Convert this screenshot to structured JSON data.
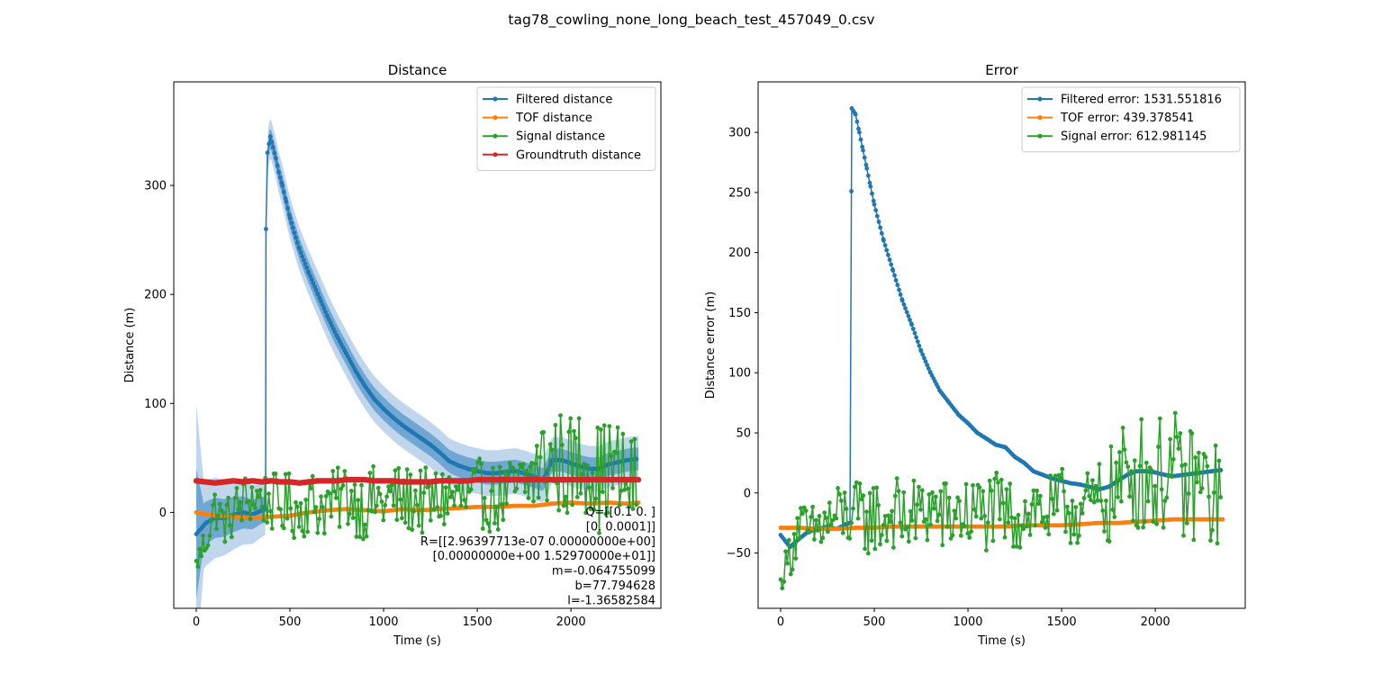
{
  "figure": {
    "suptitle": "tag78_cowling_none_long_beach_test_457049_0.csv"
  },
  "colors": {
    "filtered": "#1f77b4",
    "tof": "#ff7f0e",
    "signal": "#2ca02c",
    "groundtruth": "#d62728",
    "band_outer": "#b8d1ea",
    "band_inner": "#4f92c6"
  },
  "chart_data": [
    {
      "type": "line",
      "title": "Distance",
      "xlabel": "Time (s)",
      "ylabel": "Distance (m)",
      "xlim": [
        -120,
        2480
      ],
      "ylim": [
        -88,
        395
      ],
      "xticks": [
        0,
        500,
        1000,
        1500,
        2000
      ],
      "yticks": [
        0,
        100,
        200,
        300
      ],
      "grid": false,
      "legend_position": "top-right",
      "series": [
        {
          "name": "Filtered distance",
          "color_key": "filtered",
          "style": "dot",
          "x": [
            0,
            50,
            100,
            150,
            200,
            250,
            300,
            350,
            370,
            372,
            380,
            395,
            410,
            425,
            440,
            460,
            480,
            500,
            550,
            600,
            650,
            700,
            750,
            800,
            850,
            900,
            950,
            1000,
            1050,
            1100,
            1150,
            1200,
            1250,
            1300,
            1350,
            1400,
            1450,
            1500,
            1550,
            1600,
            1650,
            1700,
            1750,
            1800,
            1850,
            1880,
            1900,
            1950,
            2000,
            2050,
            2100,
            2150,
            2200,
            2250,
            2300,
            2350
          ],
          "y": [
            -20,
            -10,
            -5,
            -5,
            -2,
            0,
            -2,
            2,
            3,
            260,
            330,
            345,
            335,
            325,
            312,
            300,
            285,
            270,
            242,
            220,
            200,
            180,
            162,
            146,
            130,
            116,
            104,
            95,
            87,
            80,
            74,
            68,
            62,
            55,
            47,
            43,
            40,
            38,
            36,
            36,
            37,
            38,
            36,
            33,
            30,
            40,
            48,
            48,
            45,
            42,
            40,
            40,
            44,
            46,
            48,
            49
          ]
        },
        {
          "name": "TOF distance",
          "color_key": "tof",
          "style": "dot",
          "x": [
            0,
            100,
            200,
            300,
            400,
            500,
            600,
            700,
            800,
            900,
            1000,
            1100,
            1200,
            1300,
            1400,
            1500,
            1600,
            1700,
            1800,
            1900,
            2000,
            2100,
            2200,
            2300,
            2360
          ],
          "y": [
            0,
            -3,
            -4,
            -5,
            -4,
            -3,
            0,
            2,
            3,
            2,
            1,
            3,
            2,
            3,
            4,
            5,
            5,
            6,
            6,
            8,
            9,
            8,
            9,
            8,
            9
          ]
        },
        {
          "name": "Signal distance",
          "color_key": "signal",
          "style": "noisy",
          "x": [
            0,
            50,
            100,
            150,
            200,
            250,
            300,
            350,
            400,
            450,
            500,
            550,
            600,
            650,
            700,
            750,
            800,
            850,
            900,
            950,
            1000,
            1050,
            1100,
            1150,
            1200,
            1250,
            1300,
            1350,
            1400,
            1450,
            1500,
            1550,
            1600,
            1650,
            1700,
            1750,
            1800,
            1850,
            1900,
            1950,
            2000,
            2050,
            2100,
            2150,
            2200,
            2250,
            2300,
            2350
          ],
          "y": [
            -48,
            -25,
            5,
            -10,
            0,
            10,
            15,
            12,
            10,
            5,
            8,
            0,
            12,
            5,
            8,
            10,
            18,
            10,
            5,
            12,
            8,
            14,
            10,
            12,
            10,
            8,
            12,
            15,
            12,
            10,
            18,
            15,
            12,
            15,
            20,
            22,
            35,
            45,
            48,
            45,
            40,
            48,
            50,
            30,
            40,
            35,
            25,
            30
          ],
          "amp": [
            8,
            20,
            20,
            20,
            25,
            25,
            25,
            25,
            28,
            28,
            30,
            30,
            30,
            30,
            30,
            30,
            32,
            32,
            32,
            32,
            32,
            32,
            32,
            32,
            32,
            32,
            32,
            32,
            32,
            32,
            32,
            32,
            32,
            32,
            35,
            40,
            45,
            50,
            50,
            50,
            50,
            50,
            50,
            50,
            50,
            50,
            50,
            40
          ]
        },
        {
          "name": "Groundtruth distance",
          "color_key": "groundtruth",
          "style": "thick",
          "x": [
            0,
            50,
            100,
            150,
            200,
            250,
            300,
            350,
            400,
            450,
            500,
            550,
            600,
            650,
            700,
            750,
            800,
            850,
            900,
            950,
            1000,
            1050,
            1100,
            1150,
            1200,
            1250,
            1300,
            1350,
            1400,
            1450,
            1500,
            1550,
            1600,
            1650,
            1700,
            1750,
            1800,
            1850,
            1900,
            1950,
            2000,
            2050,
            2100,
            2150,
            2200,
            2250,
            2300,
            2360
          ],
          "y": [
            29,
            28,
            27,
            28,
            29,
            28,
            29,
            28,
            29,
            28,
            28,
            27,
            28,
            29,
            29,
            29,
            30,
            30,
            30,
            29,
            29,
            29,
            28,
            28,
            28,
            28,
            29,
            29,
            29,
            29,
            30,
            30,
            30,
            30,
            30,
            30,
            30,
            30,
            30,
            30,
            30,
            30,
            30,
            30,
            30,
            30,
            30,
            30
          ]
        }
      ],
      "annotation_lines": [
        "Q=[[0.1    0.    ]",
        "[0.     0.0001]]",
        "R=[[2.96397713e-07 0.00000000e+00]",
        "[0.00000000e+00 1.52970000e+01]]",
        "m=-0.064755099",
        "b=77.794628",
        "l=-1.36582584"
      ]
    },
    {
      "type": "line",
      "title": "Error",
      "xlabel": "Time (s)",
      "ylabel": "Distance error (m)",
      "xlim": [
        -120,
        2480
      ],
      "ylim": [
        -96,
        342
      ],
      "xticks": [
        0,
        500,
        1000,
        1500,
        2000
      ],
      "yticks": [
        -50,
        0,
        50,
        100,
        150,
        200,
        250,
        300
      ],
      "grid": false,
      "legend_position": "top-right",
      "series": [
        {
          "name": "Filtered error: 1531.551816",
          "color_key": "filtered",
          "style": "dot",
          "x": [
            0,
            50,
            100,
            150,
            200,
            250,
            300,
            350,
            370,
            380,
            400,
            420,
            440,
            460,
            480,
            500,
            550,
            600,
            650,
            700,
            750,
            800,
            850,
            900,
            950,
            1000,
            1050,
            1100,
            1150,
            1200,
            1250,
            1300,
            1350,
            1400,
            1450,
            1500,
            1550,
            1600,
            1650,
            1700,
            1750,
            1800,
            1850,
            1900,
            1950,
            2000,
            2050,
            2100,
            2150,
            2200,
            2250,
            2300,
            2350
          ],
          "y": [
            -35,
            -45,
            -38,
            -32,
            -30,
            -28,
            -30,
            -26,
            -25,
            320,
            315,
            300,
            285,
            270,
            255,
            240,
            210,
            185,
            160,
            140,
            118,
            100,
            85,
            75,
            65,
            58,
            50,
            45,
            40,
            38,
            30,
            25,
            18,
            15,
            12,
            10,
            8,
            7,
            5,
            3,
            5,
            10,
            15,
            18,
            18,
            17,
            15,
            14,
            15,
            16,
            17,
            18,
            19
          ]
        },
        {
          "name": "TOF error: 439.378541",
          "color_key": "tof",
          "style": "dot",
          "x": [
            0,
            100,
            200,
            300,
            400,
            500,
            600,
            700,
            800,
            900,
            1000,
            1100,
            1200,
            1300,
            1400,
            1500,
            1600,
            1700,
            1800,
            1900,
            2000,
            2100,
            2200,
            2300,
            2360
          ],
          "y": [
            -29,
            -29,
            -30,
            -30,
            -29,
            -29,
            -28,
            -28,
            -28,
            -28,
            -28,
            -28,
            -28,
            -27,
            -27,
            -27,
            -26,
            -25,
            -25,
            -24,
            -23,
            -22,
            -22,
            -22,
            -22
          ]
        },
        {
          "name": "Signal error: 612.981145",
          "color_key": "signal",
          "style": "noisy",
          "x": [
            0,
            50,
            100,
            150,
            200,
            250,
            300,
            350,
            400,
            450,
            500,
            550,
            600,
            650,
            700,
            750,
            800,
            850,
            900,
            950,
            1000,
            1050,
            1100,
            1150,
            1200,
            1250,
            1300,
            1350,
            1400,
            1450,
            1500,
            1550,
            1600,
            1650,
            1700,
            1750,
            1800,
            1850,
            1900,
            1950,
            2000,
            2050,
            2100,
            2150,
            2200,
            2250,
            2300,
            2350
          ],
          "y": [
            -75,
            -50,
            -25,
            -35,
            -30,
            -25,
            -20,
            -18,
            -20,
            -22,
            -18,
            -25,
            -15,
            -22,
            -20,
            -18,
            -12,
            -18,
            -22,
            -15,
            -20,
            -15,
            -18,
            -15,
            -18,
            -20,
            -15,
            -12,
            -15,
            -18,
            -10,
            -12,
            -15,
            -12,
            -8,
            -5,
            5,
            15,
            18,
            15,
            10,
            18,
            20,
            0,
            10,
            5,
            -5,
            0
          ],
          "amp": [
            6,
            22,
            22,
            22,
            26,
            28,
            30,
            30,
            30,
            32,
            32,
            32,
            32,
            32,
            32,
            32,
            32,
            32,
            32,
            32,
            32,
            32,
            32,
            32,
            32,
            32,
            32,
            32,
            32,
            32,
            32,
            32,
            32,
            32,
            36,
            40,
            45,
            50,
            50,
            50,
            50,
            50,
            50,
            50,
            50,
            50,
            50,
            40
          ]
        }
      ]
    }
  ]
}
